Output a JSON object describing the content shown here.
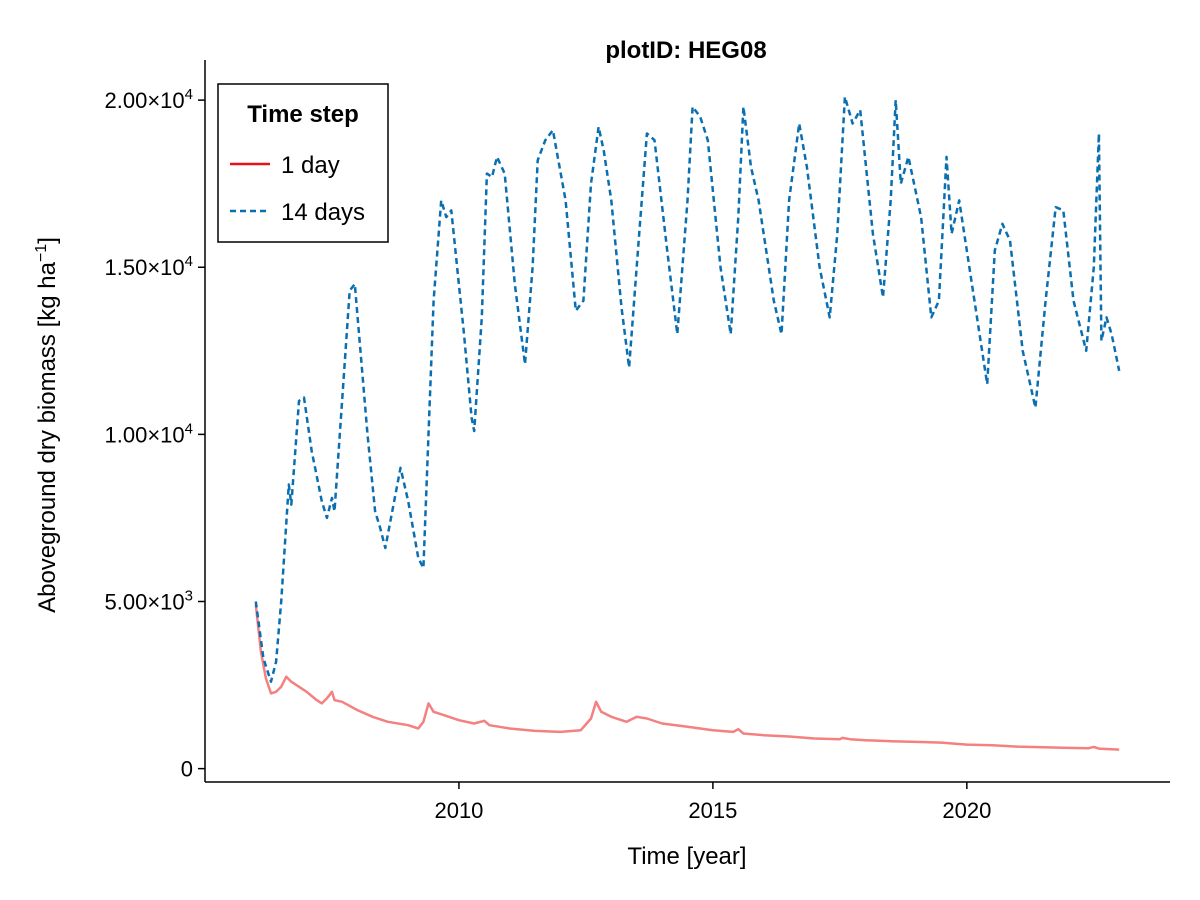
{
  "chart_data": {
    "type": "line",
    "title": "plotID: HEG08",
    "xlabel": "Time [year]",
    "ylabel_main": "Aboveground dry biomass [kg ha",
    "ylabel_sup": "−1",
    "ylabel_end": "]",
    "xlim": [
      2005.0,
      2024.0
    ],
    "ylim": [
      -400,
      21200
    ],
    "x_ticks": [
      {
        "value": 2010,
        "label": "2010"
      },
      {
        "value": 2015,
        "label": "2015"
      },
      {
        "value": 2020,
        "label": "2020"
      }
    ],
    "y_ticks": [
      {
        "value": 0,
        "mantissa": "0",
        "exp": ""
      },
      {
        "value": 5000,
        "mantissa": "5.00×10",
        "exp": "3"
      },
      {
        "value": 10000,
        "mantissa": "1.00×10",
        "exp": "4"
      },
      {
        "value": 15000,
        "mantissa": "1.50×10",
        "exp": "4"
      },
      {
        "value": 20000,
        "mantissa": "2.00×10",
        "exp": "4"
      }
    ],
    "grid": false,
    "legend": {
      "title": "Time step",
      "placement": "top-left",
      "entries": [
        {
          "label": "1 day",
          "color": "#e8101a",
          "dash": "solid"
        },
        {
          "label": "14 days",
          "color": "#0a6fb0",
          "dash": "dashed"
        }
      ]
    },
    "series": [
      {
        "name": "1 day",
        "color": "#f48080",
        "dash": "solid",
        "points": [
          [
            2006.0,
            4900
          ],
          [
            2006.1,
            3500
          ],
          [
            2006.2,
            2700
          ],
          [
            2006.3,
            2250
          ],
          [
            2006.4,
            2300
          ],
          [
            2006.5,
            2450
          ],
          [
            2006.6,
            2750
          ],
          [
            2006.7,
            2600
          ],
          [
            2006.8,
            2500
          ],
          [
            2007.0,
            2300
          ],
          [
            2007.2,
            2050
          ],
          [
            2007.3,
            1950
          ],
          [
            2007.4,
            2100
          ],
          [
            2007.5,
            2300
          ],
          [
            2007.55,
            2050
          ],
          [
            2007.7,
            2000
          ],
          [
            2008.0,
            1750
          ],
          [
            2008.3,
            1550
          ],
          [
            2008.6,
            1400
          ],
          [
            2009.0,
            1300
          ],
          [
            2009.2,
            1200
          ],
          [
            2009.3,
            1400
          ],
          [
            2009.4,
            1950
          ],
          [
            2009.5,
            1700
          ],
          [
            2009.7,
            1600
          ],
          [
            2010.0,
            1450
          ],
          [
            2010.3,
            1350
          ],
          [
            2010.5,
            1430
          ],
          [
            2010.6,
            1300
          ],
          [
            2011.0,
            1200
          ],
          [
            2011.5,
            1130
          ],
          [
            2012.0,
            1100
          ],
          [
            2012.4,
            1150
          ],
          [
            2012.6,
            1500
          ],
          [
            2012.7,
            2000
          ],
          [
            2012.8,
            1700
          ],
          [
            2013.0,
            1550
          ],
          [
            2013.3,
            1400
          ],
          [
            2013.5,
            1550
          ],
          [
            2013.7,
            1500
          ],
          [
            2014.0,
            1350
          ],
          [
            2014.5,
            1250
          ],
          [
            2015.0,
            1150
          ],
          [
            2015.4,
            1100
          ],
          [
            2015.5,
            1180
          ],
          [
            2015.6,
            1050
          ],
          [
            2016.0,
            1000
          ],
          [
            2016.5,
            960
          ],
          [
            2017.0,
            900
          ],
          [
            2017.5,
            880
          ],
          [
            2017.55,
            920
          ],
          [
            2017.7,
            880
          ],
          [
            2018.0,
            850
          ],
          [
            2018.5,
            820
          ],
          [
            2019.0,
            800
          ],
          [
            2019.5,
            780
          ],
          [
            2020.0,
            720
          ],
          [
            2020.5,
            700
          ],
          [
            2021.0,
            660
          ],
          [
            2021.5,
            640
          ],
          [
            2022.0,
            620
          ],
          [
            2022.4,
            610
          ],
          [
            2022.5,
            650
          ],
          [
            2022.6,
            600
          ],
          [
            2023.0,
            570
          ]
        ]
      },
      {
        "name": "14 days",
        "color": "#0a6fb0",
        "dash": "dashed",
        "points": [
          [
            2006.0,
            5000
          ],
          [
            2006.15,
            3300
          ],
          [
            2006.3,
            2600
          ],
          [
            2006.4,
            3200
          ],
          [
            2006.5,
            5000
          ],
          [
            2006.65,
            8500
          ],
          [
            2006.7,
            7900
          ],
          [
            2006.85,
            11000
          ],
          [
            2006.95,
            11100
          ],
          [
            2007.1,
            9500
          ],
          [
            2007.3,
            8000
          ],
          [
            2007.4,
            7500
          ],
          [
            2007.5,
            8100
          ],
          [
            2007.55,
            7700
          ],
          [
            2007.7,
            11000
          ],
          [
            2007.85,
            14300
          ],
          [
            2007.95,
            14500
          ],
          [
            2008.2,
            10000
          ],
          [
            2008.35,
            7700
          ],
          [
            2008.45,
            7200
          ],
          [
            2008.55,
            6600
          ],
          [
            2008.7,
            7800
          ],
          [
            2008.85,
            9000
          ],
          [
            2009.0,
            8000
          ],
          [
            2009.2,
            6300
          ],
          [
            2009.3,
            6000
          ],
          [
            2009.5,
            14000
          ],
          [
            2009.65,
            17000
          ],
          [
            2009.75,
            16500
          ],
          [
            2009.85,
            16700
          ],
          [
            2010.1,
            13000
          ],
          [
            2010.25,
            10500
          ],
          [
            2010.3,
            10100
          ],
          [
            2010.45,
            13500
          ],
          [
            2010.55,
            17800
          ],
          [
            2010.65,
            17700
          ],
          [
            2010.75,
            18300
          ],
          [
            2010.9,
            17800
          ],
          [
            2011.1,
            14500
          ],
          [
            2011.3,
            12100
          ],
          [
            2011.45,
            15000
          ],
          [
            2011.55,
            18200
          ],
          [
            2011.7,
            18800
          ],
          [
            2011.85,
            19100
          ],
          [
            2012.1,
            17000
          ],
          [
            2012.3,
            13700
          ],
          [
            2012.45,
            14000
          ],
          [
            2012.6,
            17500
          ],
          [
            2012.75,
            19200
          ],
          [
            2012.85,
            18500
          ],
          [
            2013.0,
            17000
          ],
          [
            2013.2,
            13800
          ],
          [
            2013.35,
            12000
          ],
          [
            2013.55,
            16000
          ],
          [
            2013.7,
            19000
          ],
          [
            2013.85,
            18800
          ],
          [
            2014.1,
            15500
          ],
          [
            2014.3,
            13000
          ],
          [
            2014.5,
            17000
          ],
          [
            2014.6,
            19800
          ],
          [
            2014.75,
            19500
          ],
          [
            2014.9,
            18800
          ],
          [
            2015.15,
            15000
          ],
          [
            2015.35,
            13000
          ],
          [
            2015.5,
            16500
          ],
          [
            2015.6,
            19800
          ],
          [
            2015.75,
            18000
          ],
          [
            2015.9,
            17000
          ],
          [
            2016.2,
            14000
          ],
          [
            2016.35,
            13000
          ],
          [
            2016.5,
            17000
          ],
          [
            2016.7,
            19300
          ],
          [
            2016.85,
            18000
          ],
          [
            2017.1,
            15000
          ],
          [
            2017.3,
            13500
          ],
          [
            2017.45,
            16000
          ],
          [
            2017.6,
            20100
          ],
          [
            2017.75,
            19300
          ],
          [
            2017.9,
            19700
          ],
          [
            2018.15,
            16000
          ],
          [
            2018.35,
            14100
          ],
          [
            2018.5,
            17000
          ],
          [
            2018.6,
            20000
          ],
          [
            2018.7,
            17500
          ],
          [
            2018.85,
            18300
          ],
          [
            2019.1,
            16500
          ],
          [
            2019.3,
            13500
          ],
          [
            2019.45,
            14000
          ],
          [
            2019.6,
            18300
          ],
          [
            2019.7,
            16000
          ],
          [
            2019.85,
            17000
          ],
          [
            2020.1,
            14500
          ],
          [
            2020.3,
            12500
          ],
          [
            2020.4,
            11500
          ],
          [
            2020.55,
            15500
          ],
          [
            2020.7,
            16300
          ],
          [
            2020.85,
            15800
          ],
          [
            2021.1,
            12500
          ],
          [
            2021.35,
            10800
          ],
          [
            2021.55,
            14000
          ],
          [
            2021.75,
            16800
          ],
          [
            2021.9,
            16700
          ],
          [
            2022.1,
            14000
          ],
          [
            2022.35,
            12500
          ],
          [
            2022.5,
            15000
          ],
          [
            2022.6,
            19000
          ],
          [
            2022.65,
            12800
          ],
          [
            2022.75,
            13500
          ],
          [
            2022.85,
            13000
          ],
          [
            2023.0,
            11900
          ]
        ]
      }
    ]
  }
}
